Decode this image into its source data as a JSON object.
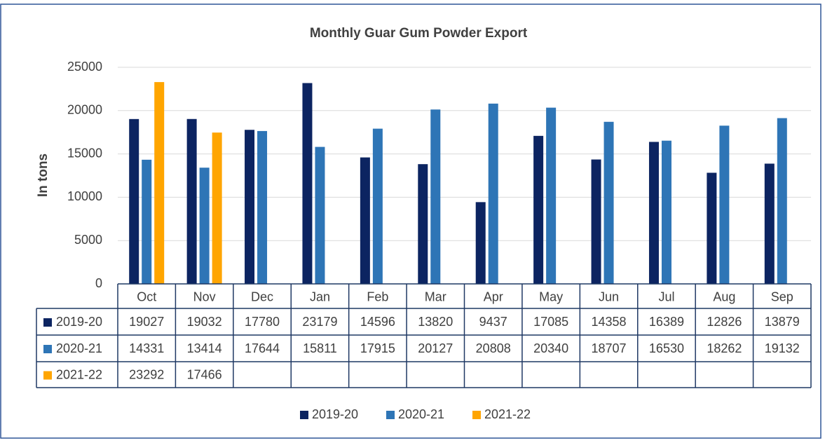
{
  "chart_data": {
    "type": "bar",
    "title": "Monthly Guar Gum Powder Export",
    "y_label": "In tons",
    "categories": [
      "Oct",
      "Nov",
      "Dec",
      "Jan",
      "Feb",
      "Mar",
      "Apr",
      "May",
      "Jun",
      "Jul",
      "Aug",
      "Sep"
    ],
    "series": [
      {
        "name": "2019-20",
        "color": "#0c2461",
        "values": [
          19027,
          19032,
          17780,
          23179,
          14596,
          13820,
          9437,
          17085,
          14358,
          16389,
          12826,
          13879
        ]
      },
      {
        "name": "2020-21",
        "color": "#2e75b6",
        "values": [
          14331,
          13414,
          17644,
          15811,
          17915,
          20127,
          20808,
          20340,
          18707,
          16530,
          18262,
          19132
        ]
      },
      {
        "name": "2021-22",
        "color": "#ffa500",
        "values": [
          23292,
          17466,
          null,
          null,
          null,
          null,
          null,
          null,
          null,
          null,
          null,
          null
        ]
      }
    ],
    "ylim": [
      0,
      25000
    ],
    "yticks": [
      0,
      5000,
      10000,
      15000,
      20000,
      25000
    ],
    "grid": true,
    "legend": "bottom",
    "data_table": true
  }
}
